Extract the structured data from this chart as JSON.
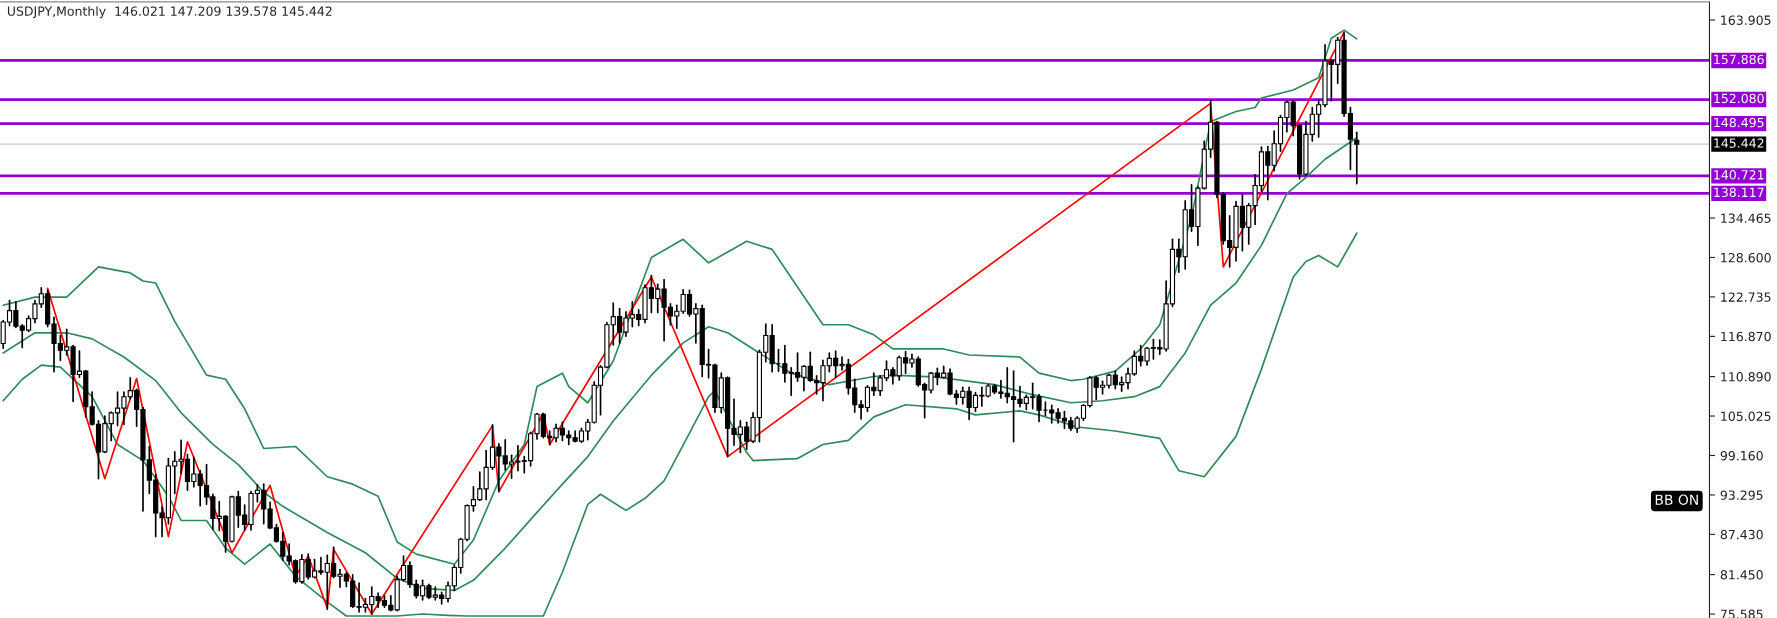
{
  "chart_data": {
    "type": "candlestick",
    "title": "USDJPY,Monthly  146.021 147.209 139.578 145.442",
    "color": "#000000",
    "categories": [
      null,
      null,
      null,
      null,
      null,
      null,
      null,
      null,
      null,
      null,
      null,
      null,
      null,
      null,
      null,
      null,
      null,
      null,
      null,
      null,
      null,
      null,
      null,
      null,
      null,
      null,
      null,
      null,
      null,
      null,
      null,
      null,
      null,
      null,
      null,
      null,
      null,
      null,
      null,
      null,
      null,
      null,
      null,
      null,
      null,
      null,
      null,
      null,
      null,
      null,
      null,
      null,
      null,
      null,
      null,
      null,
      null,
      null,
      null,
      null,
      null,
      null,
      null,
      null,
      null,
      null,
      null,
      null,
      null,
      null,
      null,
      null,
      null,
      null,
      null,
      null,
      null,
      null,
      null,
      null,
      null,
      null,
      null,
      null,
      null,
      null,
      null,
      null,
      null,
      null,
      null,
      null,
      null,
      null,
      null,
      null,
      null,
      null,
      null,
      null,
      null,
      null,
      null,
      null,
      null,
      null,
      null,
      null,
      null,
      null,
      null,
      null,
      null,
      null,
      null,
      null,
      null,
      null,
      null,
      null,
      null,
      null,
      null,
      null,
      null,
      null,
      null,
      null,
      null,
      null,
      null,
      null,
      null,
      null,
      null,
      null,
      null,
      null,
      null,
      null,
      null,
      null,
      null,
      null,
      null,
      null,
      null,
      null,
      null,
      null,
      null,
      null,
      null,
      null,
      null,
      null,
      null,
      null,
      null,
      null,
      null,
      null,
      null,
      null,
      null,
      null,
      null,
      null,
      null,
      null,
      null,
      null,
      null,
      null,
      null,
      null,
      null,
      null,
      null,
      null,
      null,
      null,
      null,
      null,
      null,
      null,
      null,
      null,
      null,
      null,
      null,
      null,
      null,
      null,
      null,
      null,
      null,
      null,
      null,
      null,
      null,
      null,
      null,
      null,
      null,
      null,
      null,
      null,
      null,
      null,
      null,
      null,
      null,
      null,
      null,
      null,
      null,
      null,
      null,
      null,
      null,
      null,
      null,
      null,
      null,
      null,
      null,
      null,
      null,
      null,
      null,
      null,
      null,
      null,
      null,
      null,
      null,
      null,
      null,
      null,
      null,
      null,
      null,
      null,
      null,
      null,
      null,
      null,
      null,
      null,
      null,
      null,
      null,
      null,
      null,
      null,
      null,
      null,
      null,
      null,
      null,
      null,
      null,
      null,
      null,
      null,
      null,
      null,
      null
    ],
    "ohlc": [
      [
        115.8,
        119.2,
        115.1,
        119.0
      ],
      [
        119.0,
        122.2,
        118.5,
        120.7
      ],
      [
        120.7,
        122.0,
        118.2,
        118.4
      ],
      [
        118.4,
        118.6,
        115.2,
        117.8
      ],
      [
        117.8,
        119.9,
        117.6,
        119.5
      ],
      [
        119.5,
        122.2,
        118.9,
        121.7
      ],
      [
        121.7,
        124.1,
        121.2,
        123.2
      ],
      [
        123.2,
        123.7,
        118.3,
        118.7
      ],
      [
        118.7,
        119.7,
        111.6,
        115.8
      ],
      [
        115.8,
        117.0,
        113.3,
        114.8
      ],
      [
        114.8,
        117.9,
        114.1,
        115.3
      ],
      [
        115.3,
        115.5,
        107.2,
        111.2
      ],
      [
        111.2,
        114.7,
        110.8,
        111.7
      ],
      [
        111.7,
        111.8,
        104.9,
        106.4
      ],
      [
        106.4,
        108.6,
        103.7,
        103.8
      ],
      [
        103.8,
        104.3,
        95.7,
        99.7
      ],
      [
        99.7,
        105.0,
        99.6,
        103.9
      ],
      [
        103.9,
        105.6,
        101.4,
        105.5
      ],
      [
        105.5,
        108.6,
        103.6,
        106.2
      ],
      [
        106.2,
        108.6,
        103.8,
        107.9
      ],
      [
        107.9,
        110.7,
        107.6,
        108.8
      ],
      [
        108.8,
        109.0,
        103.5,
        106.0
      ],
      [
        106.0,
        106.3,
        90.9,
        98.5
      ],
      [
        98.5,
        100.5,
        93.5,
        95.5
      ],
      [
        95.5,
        96.3,
        87.1,
        90.6
      ],
      [
        90.6,
        91.5,
        87.1,
        89.9
      ],
      [
        89.9,
        98.7,
        89.0,
        97.6
      ],
      [
        97.6,
        99.7,
        93.5,
        98.3
      ],
      [
        98.3,
        101.4,
        96.5,
        98.6
      ],
      [
        98.6,
        99.3,
        94.0,
        95.3
      ],
      [
        95.3,
        98.9,
        94.5,
        96.4
      ],
      [
        96.4,
        96.9,
        91.7,
        94.7
      ],
      [
        94.7,
        97.8,
        91.9,
        93.0
      ],
      [
        93.0,
        93.4,
        88.2,
        89.8
      ],
      [
        89.8,
        92.3,
        88.0,
        90.1
      ],
      [
        90.1,
        90.2,
        84.8,
        86.4
      ],
      [
        86.4,
        93.1,
        86.3,
        93.0
      ],
      [
        93.0,
        93.8,
        88.5,
        90.3
      ],
      [
        90.3,
        91.8,
        88.1,
        88.9
      ],
      [
        88.9,
        93.8,
        88.1,
        93.5
      ],
      [
        93.5,
        94.8,
        92.3,
        94.0
      ],
      [
        94.0,
        94.9,
        89.0,
        91.2
      ],
      [
        91.2,
        92.2,
        88.3,
        88.4
      ],
      [
        88.4,
        88.9,
        86.3,
        86.4
      ],
      [
        86.4,
        87.7,
        83.6,
        84.2
      ],
      [
        84.2,
        86.0,
        82.9,
        83.5
      ],
      [
        83.5,
        83.6,
        80.2,
        80.4
      ],
      [
        80.4,
        84.4,
        80.2,
        83.7
      ],
      [
        83.7,
        84.5,
        80.8,
        81.1
      ],
      [
        81.1,
        83.7,
        81.0,
        82.0
      ],
      [
        82.0,
        84.0,
        81.5,
        81.8
      ],
      [
        81.8,
        84.3,
        76.3,
        83.1
      ],
      [
        83.1,
        85.5,
        81.0,
        81.2
      ],
      [
        81.2,
        82.2,
        79.6,
        81.5
      ],
      [
        81.5,
        81.7,
        79.7,
        80.5
      ],
      [
        80.5,
        81.4,
        76.6,
        76.7
      ],
      [
        76.7,
        80.2,
        75.9,
        76.6
      ],
      [
        76.6,
        77.9,
        75.9,
        77.0
      ],
      [
        77.0,
        79.6,
        75.6,
        78.2
      ],
      [
        78.2,
        78.7,
        76.6,
        77.6
      ],
      [
        77.6,
        78.3,
        76.6,
        76.9
      ],
      [
        76.9,
        78.3,
        76.1,
        76.2
      ],
      [
        76.2,
        81.2,
        76.1,
        80.7
      ],
      [
        80.7,
        84.2,
        80.5,
        82.8
      ],
      [
        82.8,
        83.3,
        79.6,
        80.0
      ],
      [
        80.0,
        80.6,
        78.0,
        78.3
      ],
      [
        78.3,
        80.6,
        77.7,
        79.8
      ],
      [
        79.8,
        80.0,
        77.9,
        78.1
      ],
      [
        78.1,
        79.6,
        77.7,
        78.4
      ],
      [
        78.4,
        78.8,
        77.1,
        77.9
      ],
      [
        77.9,
        80.3,
        77.4,
        79.8
      ],
      [
        79.8,
        82.8,
        79.1,
        82.5
      ],
      [
        82.5,
        86.8,
        81.7,
        86.7
      ],
      [
        86.7,
        91.8,
        86.5,
        91.7
      ],
      [
        91.7,
        94.5,
        90.9,
        92.6
      ],
      [
        92.6,
        96.7,
        92.5,
        94.2
      ],
      [
        94.2,
        99.9,
        92.6,
        97.4
      ],
      [
        97.4,
        103.7,
        97.1,
        100.4
      ],
      [
        100.4,
        100.9,
        93.8,
        99.1
      ],
      [
        99.1,
        101.5,
        97.0,
        97.9
      ],
      [
        97.9,
        99.2,
        95.8,
        98.2
      ],
      [
        98.2,
        100.6,
        96.9,
        98.3
      ],
      [
        98.3,
        99.0,
        96.6,
        98.4
      ],
      [
        98.4,
        102.6,
        97.6,
        102.4
      ],
      [
        102.4,
        105.4,
        101.6,
        105.3
      ],
      [
        105.3,
        105.4,
        101.8,
        102.0
      ],
      [
        102.0,
        102.8,
        100.8,
        101.8
      ],
      [
        101.8,
        103.8,
        101.2,
        103.2
      ],
      [
        103.2,
        104.1,
        101.4,
        102.2
      ],
      [
        102.2,
        102.8,
        100.8,
        101.8
      ],
      [
        101.8,
        102.8,
        101.2,
        101.3
      ],
      [
        101.3,
        103.2,
        101.1,
        102.8
      ],
      [
        102.8,
        104.5,
        101.5,
        104.1
      ],
      [
        104.1,
        110.1,
        104.0,
        109.6
      ],
      [
        109.6,
        112.5,
        105.2,
        112.3
      ],
      [
        112.3,
        118.9,
        112.2,
        118.6
      ],
      [
        118.6,
        121.8,
        115.6,
        119.8
      ],
      [
        119.8,
        121.0,
        115.9,
        117.5
      ],
      [
        117.5,
        120.5,
        116.9,
        119.6
      ],
      [
        119.6,
        122.0,
        118.3,
        120.1
      ],
      [
        120.1,
        120.8,
        118.5,
        119.4
      ],
      [
        119.4,
        124.5,
        118.9,
        124.1
      ],
      [
        124.1,
        125.9,
        120.4,
        122.5
      ],
      [
        122.5,
        124.6,
        120.4,
        123.9
      ],
      [
        123.9,
        125.3,
        116.2,
        121.2
      ],
      [
        121.2,
        121.7,
        118.6,
        119.9
      ],
      [
        119.9,
        121.5,
        118.1,
        120.6
      ],
      [
        120.6,
        123.8,
        120.3,
        123.1
      ],
      [
        123.1,
        123.7,
        119.9,
        120.2
      ],
      [
        120.2,
        121.7,
        115.9,
        121.0
      ],
      [
        121.0,
        121.5,
        110.9,
        112.7
      ],
      [
        112.7,
        114.9,
        110.7,
        112.6
      ],
      [
        112.6,
        112.7,
        105.6,
        106.3
      ],
      [
        106.3,
        111.4,
        105.5,
        110.7
      ],
      [
        110.7,
        110.8,
        99.0,
        103.2
      ],
      [
        103.2,
        107.5,
        100.7,
        102.3
      ],
      [
        102.3,
        104.3,
        99.6,
        103.4
      ],
      [
        103.4,
        104.1,
        100.1,
        101.3
      ],
      [
        101.3,
        105.5,
        101.1,
        104.8
      ],
      [
        104.8,
        114.8,
        101.2,
        114.5
      ],
      [
        114.5,
        118.7,
        113.1,
        117.0
      ],
      [
        117.0,
        118.6,
        111.6,
        112.8
      ],
      [
        112.8,
        114.9,
        111.7,
        112.8
      ],
      [
        112.8,
        115.5,
        110.1,
        111.4
      ],
      [
        111.4,
        112.2,
        108.1,
        111.5
      ],
      [
        111.5,
        114.4,
        110.2,
        110.8
      ],
      [
        110.8,
        112.5,
        108.8,
        112.4
      ],
      [
        112.4,
        114.5,
        110.2,
        110.3
      ],
      [
        110.3,
        111.0,
        108.3,
        110.0
      ],
      [
        110.0,
        113.3,
        107.3,
        112.5
      ],
      [
        112.5,
        114.4,
        111.6,
        113.6
      ],
      [
        113.6,
        114.7,
        110.8,
        112.5
      ],
      [
        112.5,
        113.8,
        111.9,
        112.7
      ],
      [
        112.7,
        113.4,
        108.3,
        109.2
      ],
      [
        109.2,
        110.5,
        105.6,
        106.7
      ],
      [
        106.7,
        107.3,
        104.6,
        106.3
      ],
      [
        106.3,
        109.5,
        105.7,
        109.3
      ],
      [
        109.3,
        111.4,
        108.1,
        108.8
      ],
      [
        108.8,
        111.0,
        108.1,
        110.7
      ],
      [
        110.7,
        113.2,
        110.3,
        111.9
      ],
      [
        111.9,
        112.2,
        109.8,
        111.0
      ],
      [
        111.0,
        113.9,
        110.4,
        113.7
      ],
      [
        113.7,
        114.6,
        111.4,
        112.9
      ],
      [
        112.9,
        114.2,
        112.3,
        113.5
      ],
      [
        113.5,
        113.8,
        109.5,
        109.7
      ],
      [
        109.7,
        109.9,
        104.8,
        108.9
      ],
      [
        108.9,
        111.5,
        108.5,
        111.4
      ],
      [
        111.4,
        112.1,
        109.7,
        110.8
      ],
      [
        110.8,
        112.4,
        110.7,
        111.4
      ],
      [
        111.4,
        112.0,
        108.2,
        108.3
      ],
      [
        108.3,
        108.8,
        106.8,
        107.8
      ],
      [
        107.8,
        109.3,
        106.8,
        108.7
      ],
      [
        108.7,
        109.3,
        104.5,
        106.3
      ],
      [
        106.3,
        108.5,
        105.7,
        108.1
      ],
      [
        108.1,
        109.3,
        106.5,
        108.0
      ],
      [
        108.0,
        109.7,
        107.9,
        109.5
      ],
      [
        109.5,
        109.7,
        108.4,
        108.6
      ],
      [
        108.6,
        110.3,
        107.7,
        108.4
      ],
      [
        108.4,
        112.2,
        107.0,
        107.9
      ],
      [
        107.9,
        111.7,
        101.2,
        107.5
      ],
      [
        107.5,
        109.4,
        106.4,
        106.9
      ],
      [
        106.9,
        108.1,
        106.0,
        107.8
      ],
      [
        107.8,
        109.9,
        106.1,
        107.9
      ],
      [
        107.9,
        108.2,
        104.2,
        105.9
      ],
      [
        105.9,
        107.1,
        105.1,
        105.9
      ],
      [
        105.9,
        106.6,
        104.0,
        105.5
      ],
      [
        105.5,
        106.1,
        104.0,
        104.7
      ],
      [
        104.7,
        105.7,
        103.2,
        104.3
      ],
      [
        104.3,
        104.8,
        102.9,
        103.2
      ],
      [
        103.2,
        104.9,
        102.6,
        104.7
      ],
      [
        104.7,
        106.7,
        104.4,
        106.6
      ],
      [
        106.6,
        110.9,
        106.4,
        110.7
      ],
      [
        110.7,
        110.9,
        107.5,
        109.3
      ],
      [
        109.3,
        110.2,
        108.3,
        109.6
      ],
      [
        109.6,
        111.2,
        109.2,
        111.1
      ],
      [
        111.1,
        111.7,
        109.1,
        109.7
      ],
      [
        109.7,
        110.8,
        108.7,
        110.0
      ],
      [
        110.0,
        112.1,
        109.1,
        111.3
      ],
      [
        111.3,
        114.7,
        111.1,
        113.9
      ],
      [
        113.9,
        115.5,
        112.5,
        113.2
      ],
      [
        113.2,
        115.2,
        112.6,
        115.1
      ],
      [
        115.1,
        116.4,
        113.5,
        115.2
      ],
      [
        115.2,
        116.3,
        114.2,
        115.0
      ],
      [
        115.0,
        125.1,
        114.7,
        121.7
      ],
      [
        121.7,
        131.3,
        121.3,
        129.8
      ],
      [
        129.8,
        131.3,
        126.4,
        128.7
      ],
      [
        128.7,
        137.0,
        126.9,
        135.7
      ],
      [
        135.7,
        139.4,
        132.5,
        133.2
      ],
      [
        133.2,
        139.1,
        130.4,
        138.9
      ],
      [
        138.9,
        145.9,
        138.8,
        144.7
      ],
      [
        144.7,
        151.9,
        143.5,
        148.7
      ],
      [
        148.7,
        148.8,
        137.5,
        138.0
      ],
      [
        138.0,
        138.2,
        130.6,
        131.1
      ],
      [
        131.1,
        134.8,
        127.2,
        130.1
      ],
      [
        130.1,
        136.9,
        128.1,
        136.2
      ],
      [
        136.2,
        137.9,
        129.6,
        133.1
      ],
      [
        133.1,
        136.6,
        130.6,
        136.3
      ],
      [
        136.3,
        140.9,
        133.5,
        139.3
      ],
      [
        139.3,
        145.0,
        138.4,
        144.3
      ],
      [
        144.3,
        145.1,
        137.2,
        142.3
      ],
      [
        142.3,
        147.4,
        141.5,
        145.5
      ],
      [
        145.5,
        149.7,
        144.4,
        149.4
      ],
      [
        149.4,
        151.8,
        147.3,
        151.7
      ],
      [
        151.7,
        151.9,
        146.7,
        148.2
      ],
      [
        148.2,
        148.3,
        140.3,
        141.0
      ],
      [
        141.0,
        148.8,
        140.8,
        146.9
      ],
      [
        146.9,
        150.9,
        145.9,
        149.9
      ],
      [
        149.9,
        152.0,
        146.5,
        151.3
      ],
      [
        151.3,
        160.2,
        151.0,
        157.8
      ],
      [
        157.8,
        158.0,
        151.9,
        157.3
      ],
      [
        157.3,
        161.3,
        154.5,
        160.9
      ],
      [
        160.9,
        162.0,
        149.6,
        150.0
      ],
      [
        150.0,
        150.9,
        141.7,
        146.2
      ],
      [
        146.021,
        147.209,
        139.578,
        145.442
      ],
      null,
      null,
      null,
      null,
      null,
      null,
      null,
      null,
      null,
      null,
      null,
      null,
      null,
      null,
      null,
      null,
      null,
      null,
      null,
      null,
      null,
      null,
      null,
      null,
      null,
      null,
      null,
      null,
      null,
      null,
      null,
      null,
      null,
      null,
      null,
      null,
      null,
      null,
      null,
      null,
      null,
      null,
      null,
      null,
      null,
      null,
      null,
      null,
      null,
      null,
      null,
      null,
      null,
      null,
      null
    ],
    "series": [
      {
        "type": "line",
        "color": "#2e8b57",
        "values": [
          121.5,
          null,
          null,
          null,
          null,
          122.7,
          null,
          null,
          null,
          null,
          122.7,
          null,
          null,
          null,
          null,
          127.2,
          null,
          null,
          null,
          null,
          126.3,
          null,
          125.1,
          null,
          124.8,
          null,
          null,
          119.1,
          null,
          null,
          null,
          null,
          111.1,
          null,
          null,
          110.5,
          null,
          null,
          106.1,
          null,
          null,
          100.2,
          null,
          null,
          null,
          null,
          100.5,
          null,
          null,
          null,
          null,
          96.0,
          null,
          null,
          null,
          94.9,
          null,
          null,
          null,
          93.1,
          null,
          null,
          86.3,
          null,
          null,
          84.5,
          null,
          null,
          null,
          null,
          null,
          83.0,
          null,
          null,
          86.6,
          null,
          null,
          null,
          95.4,
          null,
          null,
          null,
          100.8,
          null,
          109.4,
          null,
          null,
          null,
          111.4,
          109.4,
          null,
          null,
          107.0,
          null,
          null,
          null,
          113.2,
          null,
          null,
          null,
          null,
          null,
          128.6,
          null,
          null,
          null,
          null,
          131.3,
          null,
          null,
          null,
          127.8,
          null,
          null,
          null,
          null,
          null,
          131.0,
          null,
          null,
          null,
          129.8,
          null,
          null,
          null,
          null,
          null,
          null,
          null,
          118.6,
          null,
          null,
          null,
          118.6,
          null,
          null,
          null,
          117.1,
          null,
          null,
          115.0,
          null,
          null,
          null,
          null,
          null,
          null,
          null,
          115.0,
          null,
          null,
          null,
          114.1,
          null,
          null,
          null,
          null,
          null,
          null,
          null,
          113.8,
          null,
          null,
          111.4,
          null,
          null,
          null,
          null,
          110.3,
          null,
          110.5,
          null,
          null,
          null,
          null,
          111.7,
          null,
          null,
          null,
          115.0,
          null,
          null,
          118.6,
          null,
          null,
          null,
          null,
          134.6,
          null,
          null,
          148.8,
          null,
          null,
          null,
          150.3,
          null,
          null,
          150.9,
          152.3,
          null,
          null,
          null,
          null,
          153.5,
          null,
          null,
          null,
          155.3,
          null,
          161.2,
          null,
          162.4,
          null,
          161.1,
          null,
          null,
          null,
          null,
          null,
          null,
          null,
          null,
          null,
          null,
          null,
          null,
          null,
          null,
          null,
          null,
          null,
          null,
          null,
          null,
          null,
          null,
          null,
          null,
          null,
          null,
          null,
          null,
          null,
          null,
          null,
          null,
          null,
          null,
          null,
          null,
          null,
          null,
          null,
          null,
          null,
          null,
          null,
          null,
          null,
          null,
          null,
          null,
          null,
          null,
          null,
          null,
          null,
          null,
          null
        ]
      },
      {
        "type": "line",
        "color": "#2e8b57",
        "values": [
          114.4,
          null,
          null,
          null,
          null,
          117.4,
          null,
          null,
          null,
          null,
          117.4,
          null,
          null,
          null,
          116.5,
          null,
          null,
          null,
          null,
          113.8,
          null,
          null,
          null,
          null,
          110.3,
          null,
          null,
          null,
          105.5,
          null,
          null,
          null,
          null,
          100.8,
          null,
          null,
          null,
          97.8,
          null,
          null,
          null,
          93.7,
          null,
          null,
          91.6,
          null,
          null,
          null,
          null,
          null,
          null,
          87.7,
          null,
          null,
          null,
          null,
          null,
          84.7,
          null,
          null,
          null,
          null,
          80.9,
          null,
          null,
          null,
          79.4,
          null,
          null,
          null,
          null,
          79.1,
          null,
          null,
          80.6,
          null,
          null,
          null,
          null,
          85.4,
          null,
          null,
          null,
          null,
          90.7,
          null,
          null,
          null,
          94.9,
          null,
          null,
          null,
          99.0,
          null,
          null,
          null,
          104.3,
          null,
          null,
          null,
          null,
          null,
          111.1,
          null,
          null,
          null,
          null,
          115.9,
          null,
          null,
          null,
          118.3,
          null,
          null,
          117.4,
          null,
          null,
          null,
          null,
          114.4,
          null,
          null,
          null,
          null,
          111.4,
          null,
          null,
          null,
          null,
          null,
          109.7,
          null,
          null,
          null,
          null,
          null,
          null,
          110.9,
          null,
          null,
          111.1,
          null,
          null,
          null,
          null,
          null,
          null,
          110.8,
          null,
          null,
          null,
          null,
          null,
          null,
          null,
          null,
          109.7,
          null,
          null,
          null,
          null,
          null,
          108.2,
          null,
          null,
          null,
          null,
          null,
          107.0,
          null,
          null,
          null,
          null,
          107.3,
          null,
          null,
          null,
          null,
          107.9,
          null,
          null,
          null,
          109.4,
          null,
          null,
          null,
          114.4,
          null,
          null,
          null,
          121.5,
          null,
          null,
          null,
          124.8,
          null,
          null,
          null,
          130.4,
          null,
          null,
          null,
          138.1,
          null,
          null,
          140.5,
          null,
          null,
          143.2,
          null,
          null,
          null,
          null,
          146.4,
          null,
          null,
          null,
          null,
          null,
          null,
          null,
          null,
          null,
          null,
          null,
          null,
          null,
          null,
          null,
          null,
          null,
          null,
          null,
          null,
          null,
          null,
          null,
          null,
          null,
          null,
          null,
          null,
          null,
          null,
          null,
          null,
          null,
          null,
          null,
          null,
          null,
          null,
          null,
          null,
          null,
          null,
          null,
          null,
          null,
          null,
          null,
          null,
          null,
          null,
          null,
          null,
          null,
          null,
          null
        ]
      },
      {
        "type": "line",
        "color": "#2e8b57",
        "values": [
          107.3,
          null,
          null,
          110.5,
          null,
          null,
          112.6,
          null,
          null,
          112.3,
          null,
          null,
          null,
          null,
          107.9,
          null,
          null,
          null,
          100.8,
          null,
          null,
          null,
          98.4,
          null,
          null,
          null,
          93.1,
          null,
          89.5,
          null,
          null,
          null,
          89.5,
          null,
          null,
          85.4,
          null,
          null,
          83.0,
          null,
          null,
          null,
          86.0,
          null,
          null,
          null,
          81.2,
          null,
          null,
          null,
          null,
          77.4,
          null,
          null,
          75.3,
          null,
          null,
          null,
          null,
          null,
          null,
          null,
          75.3,
          null,
          null,
          null,
          75.6,
          null,
          null,
          null,
          75.4,
          null,
          null,
          75.3,
          null,
          null,
          null,
          null,
          null,
          null,
          null,
          null,
          null,
          null,
          null,
          75.3,
          null,
          null,
          81.8,
          null,
          null,
          null,
          91.9,
          null,
          93.4,
          null,
          null,
          null,
          91.0,
          null,
          null,
          92.8,
          null,
          null,
          95.4,
          null,
          null,
          null,
          102.5,
          null,
          null,
          107.9,
          108.8,
          null,
          104.9,
          null,
          null,
          99.6,
          98.4,
          null,
          null,
          null,
          null,
          null,
          null,
          98.7,
          null,
          null,
          null,
          100.8,
          null,
          null,
          null,
          101.4,
          null,
          null,
          null,
          104.9,
          null,
          null,
          null,
          null,
          106.7,
          null,
          null,
          null,
          null,
          null,
          null,
          null,
          106.1,
          null,
          null,
          105.2,
          null,
          null,
          null,
          null,
          null,
          null,
          105.8,
          null,
          null,
          105.2,
          null,
          null,
          null,
          null,
          null,
          103.4,
          null,
          null,
          null,
          null,
          null,
          102.8,
          null,
          null,
          null,
          null,
          null,
          null,
          101.7,
          null,
          null,
          96.9,
          null,
          null,
          null,
          96.0,
          null,
          null,
          null,
          null,
          102.0,
          null,
          null,
          null,
          112.0,
          null,
          null,
          null,
          null,
          125.7,
          null,
          128.0,
          null,
          128.9,
          null,
          null,
          127.2,
          null,
          null,
          132.2,
          null,
          null,
          null,
          null,
          null,
          null,
          null,
          null,
          null,
          null,
          null,
          null,
          null,
          null,
          null,
          null,
          null,
          null,
          null,
          null,
          null,
          null,
          null,
          null,
          null,
          null,
          null,
          null,
          null,
          null,
          null,
          null,
          null,
          null,
          null,
          null,
          null,
          null,
          null,
          null,
          null,
          null,
          null,
          null,
          null,
          null,
          null,
          null,
          null,
          null,
          null,
          null,
          null,
          null,
          null
        ]
      },
      {
        "type": "line",
        "color": "#ff0000",
        "values": [
          null,
          null,
          null,
          null,
          null,
          null,
          null,
          124.0,
          null,
          null,
          null,
          null,
          null,
          null,
          null,
          null,
          95.7,
          null,
          null,
          null,
          null,
          110.6,
          null,
          null,
          null,
          null,
          87.1,
          null,
          null,
          101.2,
          null,
          null,
          null,
          null,
          null,
          null,
          84.7,
          null,
          null,
          null,
          null,
          null,
          94.7,
          null,
          null,
          null,
          81.2,
          null,
          84.2,
          null,
          null,
          76.5,
          85.2,
          null,
          null,
          null,
          null,
          null,
          75.6,
          null,
          null,
          null,
          null,
          null,
          null,
          null,
          null,
          null,
          null,
          null,
          null,
          null,
          null,
          null,
          null,
          null,
          null,
          103.6,
          93.8,
          null,
          null,
          null,
          null,
          null,
          null,
          105.4,
          100.8,
          null,
          null,
          null,
          null,
          null,
          null,
          null,
          null,
          null,
          null,
          null,
          null,
          null,
          null,
          null,
          125.7,
          null,
          null,
          null,
          null,
          null,
          null,
          null,
          null,
          null,
          null,
          null,
          99.0,
          null,
          null,
          null,
          null,
          null,
          null,
          null,
          null,
          null,
          null,
          null,
          null,
          null,
          null,
          null,
          null,
          null,
          null,
          null,
          null,
          null,
          null,
          null,
          null,
          null,
          null,
          null,
          null,
          null,
          null,
          null,
          null,
          null,
          null,
          null,
          null,
          null,
          null,
          null,
          null,
          null,
          null,
          null,
          null,
          null,
          null,
          null,
          null,
          null,
          null,
          null,
          null,
          null,
          null,
          null,
          null,
          null,
          null,
          null,
          null,
          null,
          null,
          null,
          null,
          null,
          null,
          null,
          null,
          null,
          null,
          null,
          null,
          null,
          null,
          null,
          151.5,
          null,
          127.2,
          null,
          null,
          null,
          null,
          null,
          null,
          null,
          null,
          null,
          null,
          null,
          null,
          null,
          null,
          null,
          null,
          null,
          null,
          162.1,
          null,
          null,
          null,
          null,
          null,
          null,
          null,
          null,
          null,
          null,
          null,
          null,
          null,
          null,
          null,
          null,
          null,
          null,
          null,
          null,
          null,
          null,
          null,
          null,
          null,
          null,
          null,
          null,
          null,
          null,
          null,
          null,
          null,
          null,
          null,
          null,
          null,
          null,
          null,
          null,
          null,
          null,
          null,
          null,
          null,
          null,
          null,
          null,
          null,
          null,
          null,
          null,
          null,
          null,
          null,
          null,
          null
        ]
      }
    ],
    "ylim": [
      75.0,
      166.6
    ],
    "yticks": [
      163.905,
      {
        "value": 134.465,
        "label": "134.465"
      },
      {
        "value": 128.6,
        "label": "128.600"
      },
      122.735,
      {
        "value": 116.87,
        "label": "116.870"
      },
      {
        "value": 110.89,
        "label": "110.890"
      },
      105.025,
      {
        "value": 99.16,
        "label": "99.160"
      },
      93.295,
      {
        "value": 87.43,
        "label": "87.430"
      },
      {
        "value": 81.45,
        "label": "81.450"
      },
      75.585
    ],
    "tick_labels": "y",
    "ref_lines": [
      {
        "axis": "y",
        "value": 157.886,
        "label": "157.886",
        "color": "#9400d3"
      },
      {
        "axis": "y",
        "value": 152.08,
        "label": "152.080",
        "color": "#9400d3"
      },
      {
        "axis": "y",
        "value": 148.495,
        "label": "148.495",
        "color": "#9400d3"
      },
      {
        "axis": "y",
        "value": 145.442,
        "label": "145.442",
        "color": "#c8c8c8"
      },
      {
        "axis": "y",
        "value": 140.721,
        "label": "140.721",
        "color": "#9400d3"
      },
      {
        "axis": "y",
        "value": 138.117,
        "label": "138.117",
        "color": "#9400d3"
      }
    ],
    "annotations": [
      "BB ON"
    ]
  }
}
